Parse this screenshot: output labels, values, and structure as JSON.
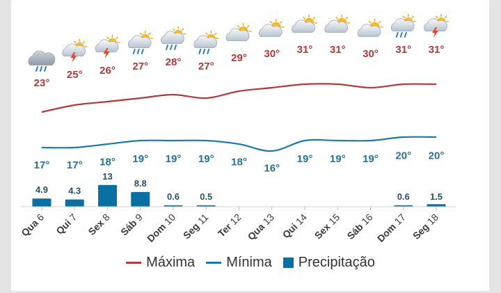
{
  "colors": {
    "max": "#b03a3a",
    "min": "#1c7aa8",
    "precip": "#0b6fa4",
    "day_label": "#3a3a3a",
    "precip_label": "#2b4f66"
  },
  "legend": {
    "max_label": "Máxima",
    "min_label": "Mínima",
    "precip_label": "Precipitação"
  },
  "chart_data": {
    "type": "line",
    "categories": [
      "Qua 6",
      "Qui 7",
      "Sex 8",
      "Sáb 9",
      "Dom 10",
      "Seg 11",
      "Ter 12",
      "Qua 13",
      "Qui 14",
      "Sex 15",
      "Sáb 16",
      "Dom 17",
      "Seg 18"
    ],
    "icons": [
      "rain-cloud-icon",
      "storm-sun-icon",
      "storm-sun-icon",
      "rain-sun-icon",
      "rain-sun-icon",
      "rain-sun-icon",
      "sun-cloud-icon",
      "sun-cloud-icon",
      "sun-cloud-icon",
      "sun-cloud-icon",
      "sun-cloud-icon",
      "rain-sun-icon",
      "storm-sun-icon"
    ],
    "series": [
      {
        "name": "Máxima",
        "values": [
          23,
          25,
          26,
          27,
          28,
          27,
          29,
          30,
          31,
          31,
          30,
          31,
          31
        ],
        "labels": [
          "23°",
          "25°",
          "26°",
          "27°",
          "28°",
          "27°",
          "29°",
          "30°",
          "31°",
          "31°",
          "30°",
          "31°",
          "31°"
        ]
      },
      {
        "name": "Mínima",
        "values": [
          17,
          17,
          18,
          19,
          19,
          19,
          18,
          16,
          19,
          19,
          19,
          20,
          20
        ],
        "labels": [
          "17°",
          "17°",
          "18°",
          "19°",
          "19°",
          "19°",
          "18°",
          "16°",
          "19°",
          "19°",
          "19°",
          "20°",
          "20°"
        ]
      }
    ],
    "precipitation": {
      "name": "Precipitação",
      "values": [
        4.9,
        4.3,
        13,
        8.8,
        0.6,
        0.5,
        0,
        0,
        0,
        0,
        0,
        0.6,
        1.5
      ],
      "labels": [
        "4.9",
        "4.3",
        "13",
        "8.8",
        "0.6",
        "0.5",
        "",
        "",
        "",
        "",
        "",
        "0.6",
        "1.5"
      ]
    },
    "grid": false,
    "legend_position": "bottom"
  }
}
